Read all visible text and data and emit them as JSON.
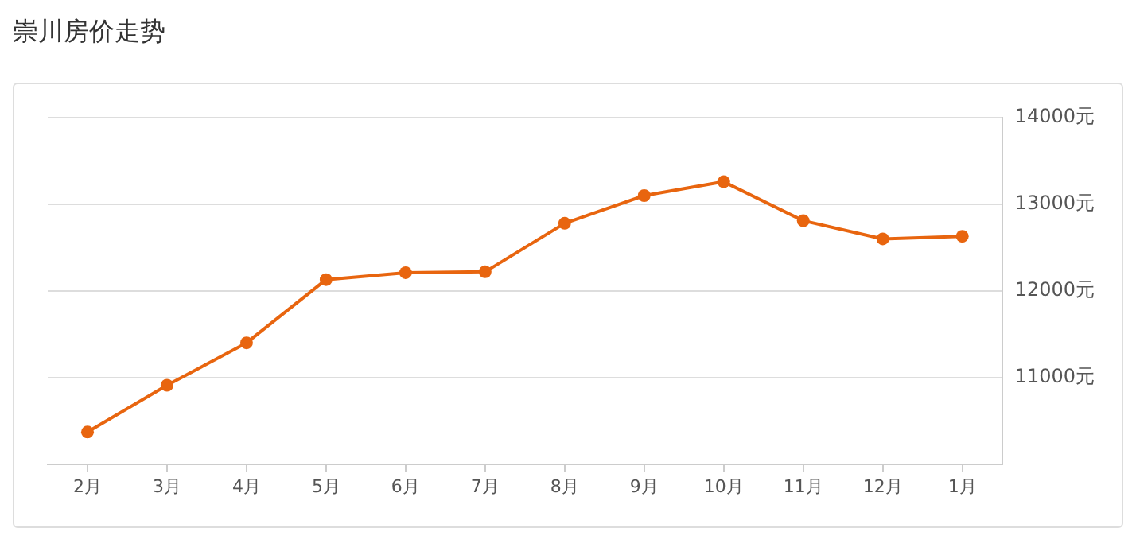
{
  "chart_data": {
    "type": "line",
    "title": "崇川房价走势",
    "categories": [
      "2月",
      "3月",
      "4月",
      "5月",
      "6月",
      "7月",
      "8月",
      "9月",
      "10月",
      "11月",
      "12月",
      "1月"
    ],
    "series": [
      {
        "color": "#e8650f",
        "values": [
          10370,
          10910,
          11400,
          12130,
          12210,
          12220,
          12780,
          13100,
          13260,
          12810,
          12600,
          12630
        ]
      }
    ],
    "ylim": [
      10000,
      14000
    ],
    "yticks": [
      {
        "value": 11000,
        "label": "11000元"
      },
      {
        "value": 12000,
        "label": "12000元"
      },
      {
        "value": 13000,
        "label": "13000元"
      },
      {
        "value": 14000,
        "label": "14000元"
      }
    ],
    "grid": "y",
    "marker": "circle",
    "line_style": "solid"
  }
}
